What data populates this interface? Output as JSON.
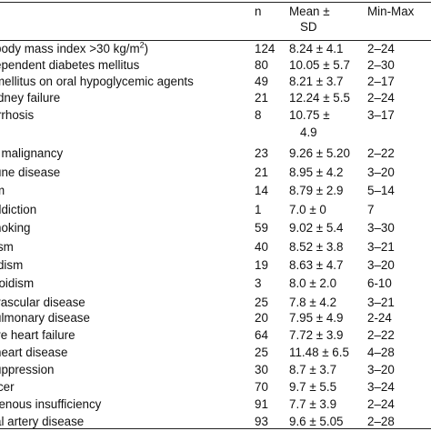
{
  "header": {
    "n": "n",
    "mean_line1": "Mean ±",
    "mean_line2": "SD",
    "range": "Min-Max"
  },
  "rows": [
    {
      "condition": "body mass index >30 kg/m",
      "sup": "2",
      "suffix": ")",
      "n": "124",
      "mean": "8.24 ± 4.1",
      "range": "2–24"
    },
    {
      "condition": "ependent diabetes mellitus",
      "n": "80",
      "mean": "10.05 ± 5.7",
      "range": "2–30"
    },
    {
      "condition": "mellitus on oral hypoglycemic agents",
      "n": "49",
      "mean": "8.21 ± 3.7",
      "range": "2–17"
    },
    {
      "condition": "idney failure",
      "n": "21",
      "mean": "12.24 ± 5.5",
      "range": "2–24"
    },
    {
      "condition": "irrhosis",
      "n": "8",
      "mean": "10.75 ±",
      "mean2": "4.9",
      "range": "3–17"
    },
    {
      "condition": "f malignancy",
      "n": "23",
      "mean": "9.26 ± 5.20",
      "range": "2–22"
    },
    {
      "condition": "une disease",
      "n": "21",
      "mean": "8.95 ± 4.2",
      "range": "3–20"
    },
    {
      "condition": "m",
      "n": "14",
      "mean": "8.79 ± 2.9",
      "range": "5–14"
    },
    {
      "condition": "ddiction",
      "n": "1",
      "mean": "7.0 ± 0",
      "range": "7"
    },
    {
      "condition": "noking",
      "n": "59",
      "mean": "9.02 ± 5.4",
      "range": "3–30"
    },
    {
      "condition": "ism",
      "n": "40",
      "mean": "8.52 ± 3.8",
      "range": "3–21"
    },
    {
      "condition": "idism",
      "n": "19",
      "mean": "8.63 ± 4.7",
      "range": "3–20"
    },
    {
      "condition": "roidism",
      "n": "3",
      "mean": "8.0 ± 2.0",
      "range": "6-10"
    },
    {
      "condition": "vascular disease",
      "n": "25",
      "mean": "7.8 ± 4.2",
      "range": "3–21"
    },
    {
      "condition": "ulmonary disease",
      "n": "20",
      "mean": "7.95 ± 4.9",
      "range": "2-24"
    },
    {
      "condition": "ve heart failure",
      "n": "64",
      "mean": "7.72 ± 3.9",
      "range": "2–22"
    },
    {
      "condition": "heart disease",
      "n": "25",
      "mean": "11.48 ± 6.5",
      "range": "4–28"
    },
    {
      "condition": "uppression",
      "n": "30",
      "mean": "8.7 ± 3.7",
      "range": "3–20"
    },
    {
      "condition": "lcer",
      "n": "70",
      "mean": "9.7 ± 5.5",
      "range": "3–24"
    },
    {
      "condition": "renous insufficiency",
      "n": "91",
      "mean": "7.7 ± 3.9",
      "range": "2–24"
    },
    {
      "condition": "al artery disease",
      "n": "93",
      "mean": "9.6 ± 5.05",
      "range": "2–28"
    }
  ]
}
